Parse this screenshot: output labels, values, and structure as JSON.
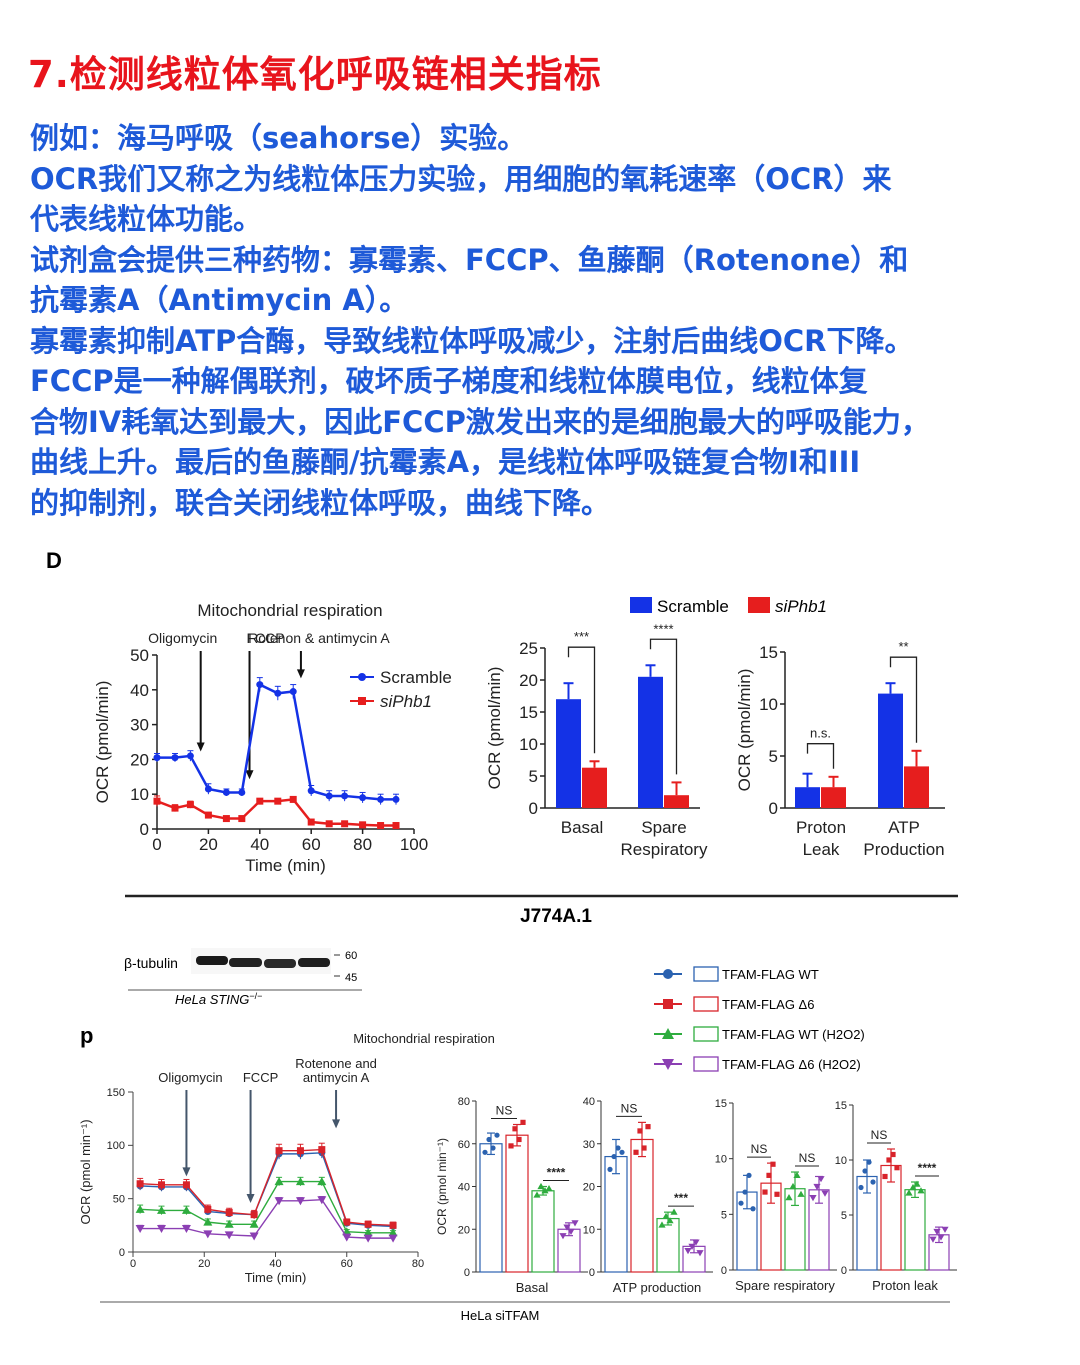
{
  "title": "7.检测线粒体氧化呼吸链相关指标",
  "paragraph": [
    "例如：海马呼吸（seahorse）实验。",
    "OCR我们又称之为线粒体压力实验，用细胞的氧耗速率（OCR）来",
    "代表线粒体功能。",
    "试剂盒会提供三种药物：寡霉素、FCCP、鱼藤酮（Rotenone）和",
    "抗霉素A（Antimycin A）。",
    "寡霉素抑制ATP合酶，导致线粒体呼吸减少，注射后曲线OCR下降。",
    "FCCP是一种解偶联剂，破坏质子梯度和线粒体膜电位，线粒体复",
    "合物IV耗氧达到最大，因此FCCP激发出来的是细胞最大的呼吸能力，",
    "曲线上升。最后的鱼藤酮/抗霉素A，是线粒体呼吸链复合物I和III",
    "的抑制剂，联合关闭线粒体呼吸，曲线下降。"
  ],
  "colors": {
    "title": "#e8141c",
    "text": "#1e5ad8",
    "blue": "#1432e6",
    "red": "#e61e1e",
    "p_wt": "#2b62b0",
    "p_d6": "#d8232a",
    "p_wth": "#2eac3e",
    "p_d6h": "#8b3fb3"
  },
  "figD": {
    "label": "D",
    "cell_line": "J774A.1",
    "legend": [
      "Scramble",
      "siPhb1"
    ]
  },
  "figP": {
    "label": "p",
    "wb_label": "β-tubulin",
    "wb_markers": [
      "60",
      "45"
    ],
    "wb_cell": "HeLa STING",
    "wb_cell_sup": "−/−",
    "legend": [
      "TFAM-FLAG WT",
      "TFAM-FLAG Δ6",
      "TFAM-FLAG WT (H2O2)",
      "TFAM-FLAG Δ6 (H2O2)"
    ],
    "cell_line": "HeLa siTFAM"
  },
  "chart_data": [
    {
      "id": "D-timecourse",
      "type": "line",
      "title": "Mitochondrial respiration",
      "xlabel": "Time (min)",
      "ylabel": "OCR (pmol/min)",
      "xlim": [
        0,
        100
      ],
      "ylim": [
        0,
        50
      ],
      "xticks": [
        0,
        20,
        40,
        60,
        80,
        100
      ],
      "yticks": [
        0,
        10,
        20,
        30,
        40,
        50
      ],
      "annotations": [
        {
          "text": "Oligomycin",
          "x": 17
        },
        {
          "text": "FCCP",
          "x": 36
        },
        {
          "text": "Rotenon & antimycin A",
          "x": 56
        }
      ],
      "x": [
        0,
        7,
        13,
        20,
        27,
        33,
        40,
        47,
        53,
        60,
        67,
        73,
        80,
        87,
        93
      ],
      "series": [
        {
          "name": "Scramble",
          "color": "#1432e6",
          "marker": "circle",
          "values": [
            20.5,
            20.5,
            21,
            11.5,
            10.5,
            10.5,
            41.5,
            39,
            39.5,
            11,
            9.5,
            9.5,
            9,
            8.5,
            8.5
          ],
          "errors": [
            1.2,
            1.2,
            1.5,
            1.5,
            1,
            1,
            2,
            2,
            2,
            1.5,
            1.5,
            1.5,
            1.5,
            1.5,
            1.5
          ]
        },
        {
          "name": "siPhb1",
          "color": "#e61e1e",
          "marker": "square",
          "values": [
            8,
            6,
            7,
            4,
            3,
            3,
            8,
            8,
            8.5,
            2,
            1.5,
            1.5,
            1.2,
            1,
            1
          ],
          "errors": [
            1.5,
            1,
            1,
            0.5,
            0.5,
            0.5,
            0.5,
            0.5,
            0.5,
            0.5,
            0.3,
            0.3,
            0.3,
            0.3,
            0.3
          ]
        }
      ]
    },
    {
      "id": "D-bar1",
      "type": "bar",
      "ylabel": "OCR (pmol/min)",
      "ylim": [
        0,
        25
      ],
      "yticks": [
        0,
        5,
        10,
        15,
        20,
        25
      ],
      "categories": [
        "Basal",
        "Spare Respiratory"
      ],
      "category_lines": [
        [
          "Basal"
        ],
        [
          "Spare",
          "Respiratory"
        ]
      ],
      "significance": [
        "***",
        "****"
      ],
      "series": [
        {
          "name": "Scramble",
          "color": "#1432e6",
          "values": [
            17,
            20.5
          ],
          "errors": [
            2.5,
            1.8
          ]
        },
        {
          "name": "siPhb1",
          "color": "#e61e1e",
          "values": [
            6.3,
            2
          ],
          "errors": [
            1,
            2
          ]
        }
      ]
    },
    {
      "id": "D-bar2",
      "type": "bar",
      "ylabel": "OCR (pmol/min)",
      "ylim": [
        0,
        15
      ],
      "yticks": [
        0,
        5,
        10,
        15
      ],
      "categories": [
        "Proton Leak",
        "ATP Production"
      ],
      "category_lines": [
        [
          "Proton",
          "Leak"
        ],
        [
          "ATP",
          "Production"
        ]
      ],
      "significance": [
        "n.s.",
        "**"
      ],
      "series": [
        {
          "name": "Scramble",
          "color": "#1432e6",
          "values": [
            2,
            11
          ],
          "errors": [
            1.3,
            1
          ]
        },
        {
          "name": "siPhb1",
          "color": "#e61e1e",
          "values": [
            2,
            4
          ],
          "errors": [
            1,
            1.5
          ]
        }
      ]
    },
    {
      "id": "P-timecourse",
      "type": "line",
      "title": "Mitochondrial respiration",
      "xlabel": "Time (min)",
      "ylabel": "OCR (pmol min⁻¹)",
      "xlim": [
        0,
        80
      ],
      "ylim": [
        0,
        150
      ],
      "xticks": [
        0,
        20,
        40,
        60,
        80
      ],
      "yticks": [
        0,
        50,
        100,
        150
      ],
      "annotations": [
        {
          "text": "Oligomycin",
          "x": 15
        },
        {
          "text": "FCCP",
          "x": 33
        },
        {
          "text": "Rotenone and",
          "text2": "antimycin A",
          "x": 57
        }
      ],
      "x": [
        2,
        8,
        15,
        21,
        27,
        34,
        41,
        47,
        53,
        60,
        66,
        73
      ],
      "series": [
        {
          "name": "TFAM-FLAG WT",
          "color": "#2b62b0",
          "marker": "circle",
          "values": [
            62,
            61,
            61,
            38,
            36,
            35,
            92,
            92,
            93,
            27,
            25,
            24
          ],
          "errors": [
            4,
            4,
            4,
            3,
            3,
            3,
            5,
            5,
            5,
            3,
            2,
            2
          ]
        },
        {
          "name": "TFAM-FLAG Δ6",
          "color": "#d8232a",
          "marker": "square",
          "values": [
            64,
            63,
            63,
            40,
            37,
            35,
            95,
            95,
            96,
            28,
            26,
            25
          ],
          "errors": [
            5,
            5,
            5,
            4,
            4,
            4,
            6,
            6,
            6,
            3,
            3,
            3
          ]
        },
        {
          "name": "TFAM-FLAG WT (H2O2)",
          "color": "#2eac3e",
          "marker": "triangle",
          "values": [
            40,
            39,
            39,
            28,
            26,
            26,
            66,
            66,
            66,
            19,
            18,
            18
          ],
          "errors": [
            4,
            4,
            4,
            3,
            3,
            3,
            4,
            4,
            4,
            2,
            2,
            2
          ]
        },
        {
          "name": "TFAM-FLAG Δ6 (H2O2)",
          "color": "#8b3fb3",
          "marker": "triangle-down",
          "values": [
            22,
            22,
            22,
            17,
            16,
            15,
            48,
            48,
            49,
            14,
            13,
            13
          ],
          "errors": [
            3,
            3,
            3,
            2,
            2,
            2,
            3,
            3,
            3,
            2,
            2,
            2
          ]
        }
      ]
    },
    {
      "id": "P-basal",
      "type": "bar",
      "xlabel": "Basal",
      "ylabel": "OCR (pmol min⁻¹)",
      "ylim": [
        0,
        80
      ],
      "yticks": [
        0,
        20,
        40,
        60,
        80
      ],
      "values": [
        60,
        64,
        38,
        20
      ],
      "errors": [
        5,
        5,
        2,
        3
      ],
      "points": [
        [
          56,
          62,
          58,
          64
        ],
        [
          59,
          67,
          62,
          70
        ],
        [
          36,
          40,
          38,
          39
        ],
        [
          17,
          21,
          19,
          23
        ]
      ],
      "significance": [
        {
          "text": "NS",
          "from": 0,
          "to": 1
        },
        {
          "text": "****",
          "from": 2,
          "to": 3
        }
      ]
    },
    {
      "id": "P-atp",
      "type": "bar",
      "xlabel": "ATP production",
      "ylim": [
        0,
        40
      ],
      "yticks": [
        0,
        10,
        20,
        30,
        40
      ],
      "values": [
        27,
        31,
        12.5,
        6
      ],
      "errors": [
        4,
        4,
        1.5,
        1.5
      ],
      "points": [
        [
          24,
          27,
          29,
          28
        ],
        [
          28,
          33,
          29,
          34
        ],
        [
          11,
          13,
          12,
          14
        ],
        [
          5,
          6,
          7,
          4.5
        ]
      ],
      "significance": [
        {
          "text": "NS",
          "from": 0,
          "to": 1
        },
        {
          "text": "***",
          "from": 2,
          "to": 3
        }
      ]
    },
    {
      "id": "P-spare",
      "type": "bar",
      "xlabel": "Spare respiratory",
      "ylim": [
        0,
        15
      ],
      "yticks": [
        0,
        5,
        10,
        15
      ],
      "values": [
        7,
        7.8,
        7.3,
        7.2
      ],
      "errors": [
        1.5,
        1.8,
        1.5,
        1.2
      ],
      "points": [
        [
          6,
          7,
          8.5,
          5.5
        ],
        [
          7,
          8.5,
          9.5,
          6.8
        ],
        [
          6.5,
          7.5,
          8.5,
          6.8
        ],
        [
          6.5,
          7.5,
          8.2,
          6.9
        ]
      ],
      "significance": [
        {
          "text": "NS",
          "from": 0,
          "to": 1
        },
        {
          "text": "NS",
          "from": 2,
          "to": 3
        }
      ]
    },
    {
      "id": "P-leak",
      "type": "bar",
      "xlabel": "Proton leak",
      "ylim": [
        0,
        15
      ],
      "yticks": [
        0,
        5,
        10,
        15
      ],
      "values": [
        8.5,
        9.5,
        7.3,
        3.2
      ],
      "errors": [
        1.5,
        1.5,
        0.7,
        0.7
      ],
      "points": [
        [
          7.5,
          9,
          9.8,
          8
        ],
        [
          8.5,
          10,
          10.5,
          9.3
        ],
        [
          7,
          7.5,
          7.8,
          7.2
        ],
        [
          2.8,
          3.5,
          3,
          3.7
        ]
      ],
      "significance": [
        {
          "text": "NS",
          "from": 0,
          "to": 1
        },
        {
          "text": "****",
          "from": 2,
          "to": 3
        }
      ]
    }
  ]
}
